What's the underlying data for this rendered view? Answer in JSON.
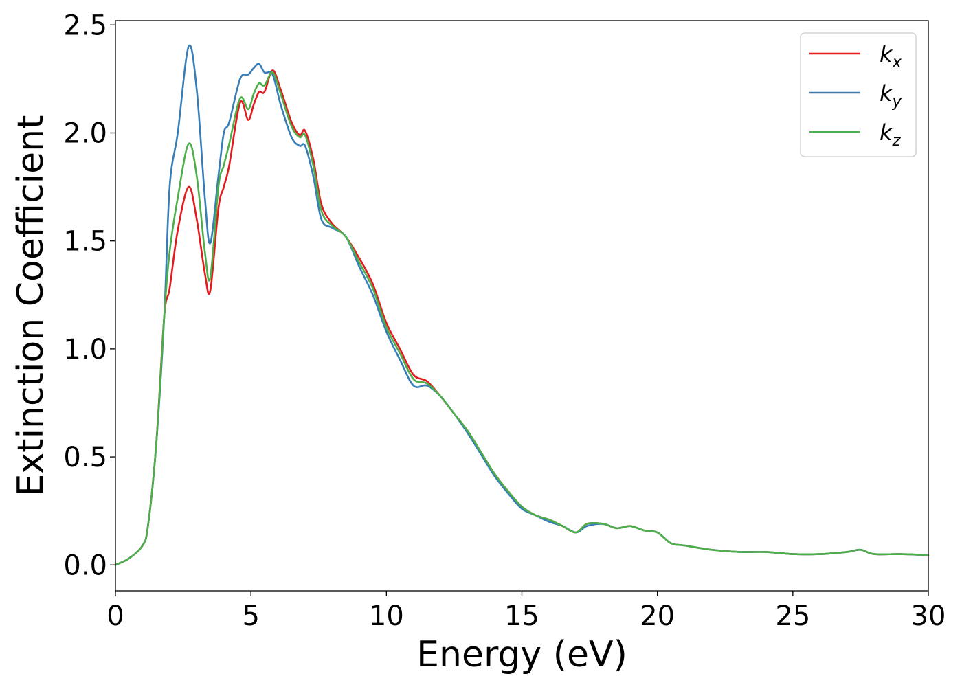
{
  "chart_data": {
    "type": "line",
    "title": "",
    "xlabel": "Energy (eV)",
    "ylabel": "Extinction Coefficient",
    "xlim": [
      0,
      30
    ],
    "ylim": [
      -0.12,
      2.52
    ],
    "xticks": [
      0,
      5,
      10,
      15,
      20,
      25,
      30
    ],
    "xtick_labels": [
      "0",
      "5",
      "10",
      "15",
      "20",
      "25",
      "30"
    ],
    "yticks": [
      0.0,
      0.5,
      1.0,
      1.5,
      2.0,
      2.5
    ],
    "ytick_labels": [
      "0.0",
      "0.5",
      "1.0",
      "1.5",
      "2.0",
      "2.5"
    ],
    "grid": false,
    "legend": {
      "placement": "top-right"
    },
    "x": [
      0,
      0.5,
      1.0,
      1.2,
      1.5,
      1.8,
      2.0,
      2.3,
      2.7,
      3.0,
      3.3,
      3.5,
      3.8,
      4.0,
      4.2,
      4.6,
      4.9,
      5.1,
      5.3,
      5.5,
      5.8,
      6.1,
      6.5,
      6.8,
      7.0,
      7.3,
      7.6,
      8.0,
      8.5,
      9.0,
      9.5,
      10.0,
      10.5,
      11.0,
      11.5,
      12.0,
      12.5,
      13.0,
      13.5,
      14.0,
      14.5,
      15.0,
      15.5,
      16.0,
      16.5,
      17.0,
      17.4,
      18.0,
      18.5,
      19.0,
      19.5,
      20.0,
      20.5,
      21.0,
      22.0,
      23.0,
      24.0,
      25.0,
      26.0,
      27.0,
      27.5,
      28.0,
      29.0,
      30.0
    ],
    "series": [
      {
        "name": "k_x",
        "label_base": "k",
        "label_sub": "x",
        "color": "#e41a1c",
        "values": [
          0.0,
          0.03,
          0.09,
          0.18,
          0.55,
          1.15,
          1.28,
          1.55,
          1.75,
          1.6,
          1.35,
          1.27,
          1.65,
          1.75,
          1.85,
          2.14,
          2.06,
          2.13,
          2.19,
          2.19,
          2.29,
          2.2,
          2.05,
          1.99,
          2.01,
          1.88,
          1.67,
          1.58,
          1.52,
          1.42,
          1.3,
          1.12,
          1.0,
          0.88,
          0.85,
          0.78,
          0.7,
          0.62,
          0.52,
          0.42,
          0.34,
          0.27,
          0.23,
          0.21,
          0.18,
          0.15,
          0.19,
          0.19,
          0.17,
          0.18,
          0.16,
          0.15,
          0.1,
          0.09,
          0.07,
          0.06,
          0.06,
          0.05,
          0.05,
          0.06,
          0.07,
          0.05,
          0.05,
          0.045
        ]
      },
      {
        "name": "k_y",
        "label_base": "k",
        "label_sub": "y",
        "color": "#377eb8",
        "values": [
          0.0,
          0.03,
          0.09,
          0.18,
          0.55,
          1.15,
          1.75,
          2.0,
          2.4,
          2.2,
          1.7,
          1.49,
          1.8,
          2.0,
          2.05,
          2.25,
          2.27,
          2.3,
          2.32,
          2.28,
          2.27,
          2.13,
          1.98,
          1.94,
          1.94,
          1.8,
          1.6,
          1.56,
          1.52,
          1.38,
          1.25,
          1.08,
          0.95,
          0.83,
          0.83,
          0.78,
          0.7,
          0.61,
          0.51,
          0.41,
          0.33,
          0.26,
          0.23,
          0.2,
          0.18,
          0.15,
          0.18,
          0.19,
          0.17,
          0.18,
          0.16,
          0.15,
          0.1,
          0.09,
          0.07,
          0.06,
          0.06,
          0.05,
          0.05,
          0.06,
          0.07,
          0.05,
          0.05,
          0.045
        ]
      },
      {
        "name": "k_z",
        "label_base": "k",
        "label_sub": "z",
        "color": "#4daf4a",
        "values": [
          0.0,
          0.03,
          0.09,
          0.18,
          0.55,
          1.15,
          1.45,
          1.7,
          1.95,
          1.8,
          1.45,
          1.33,
          1.75,
          1.85,
          1.95,
          2.16,
          2.11,
          2.18,
          2.23,
          2.22,
          2.28,
          2.18,
          2.03,
          1.98,
          1.99,
          1.85,
          1.64,
          1.57,
          1.52,
          1.4,
          1.28,
          1.1,
          0.98,
          0.86,
          0.84,
          0.78,
          0.7,
          0.62,
          0.52,
          0.42,
          0.34,
          0.27,
          0.23,
          0.21,
          0.18,
          0.15,
          0.19,
          0.19,
          0.17,
          0.18,
          0.16,
          0.15,
          0.1,
          0.09,
          0.07,
          0.06,
          0.06,
          0.05,
          0.05,
          0.06,
          0.07,
          0.05,
          0.05,
          0.045
        ]
      }
    ]
  }
}
